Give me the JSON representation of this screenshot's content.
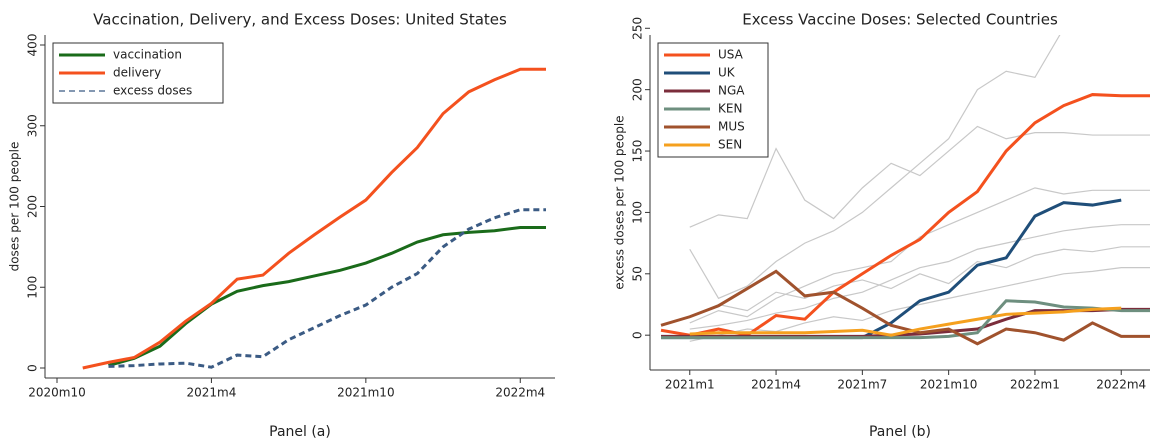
{
  "chart_data": [
    {
      "type": "line",
      "title": "Vaccination, Delivery, and Excess Doses: United States",
      "ylabel": "doses per 100 people",
      "caption": "Panel (a)",
      "x": [
        "2020m11",
        "2020m12",
        "2021m1",
        "2021m2",
        "2021m3",
        "2021m4",
        "2021m5",
        "2021m6",
        "2021m7",
        "2021m8",
        "2021m9",
        "2021m10",
        "2021m11",
        "2021m12",
        "2022m1",
        "2022m2",
        "2022m3",
        "2022m4",
        "2022m5"
      ],
      "xlim": [
        "2020m10",
        "2022m5"
      ],
      "xticks": [
        "2020m10",
        "2021m4",
        "2021m10",
        "2022m4"
      ],
      "ylim": [
        0,
        400
      ],
      "yticks": [
        0,
        100,
        200,
        300,
        400
      ],
      "legend": "upper left",
      "series": [
        {
          "name": "vaccination",
          "color": "#1a6b1a",
          "values": [
            null,
            3,
            12,
            27,
            55,
            79,
            95,
            102,
            107,
            114,
            121,
            130,
            142,
            156,
            165,
            168,
            170,
            174,
            174
          ]
        },
        {
          "name": "delivery",
          "color": "#f4511e",
          "values": [
            0,
            7,
            13,
            32,
            58,
            80,
            110,
            115,
            142,
            165,
            187,
            208,
            242,
            273,
            315,
            342,
            357,
            370,
            370
          ]
        },
        {
          "name": "excess doses",
          "color": "#3b5b84",
          "dash": true,
          "values": [
            null,
            2,
            3,
            5,
            6,
            1,
            16,
            14,
            35,
            50,
            65,
            78,
            100,
            117,
            150,
            172,
            186,
            196,
            196
          ]
        }
      ]
    },
    {
      "type": "line",
      "title": "Excess Vaccine Doses: Selected Countries",
      "ylabel": "excess doses per 100 people",
      "caption": "Panel (b)",
      "x": [
        "2020m12",
        "2021m1",
        "2021m2",
        "2021m3",
        "2021m4",
        "2021m5",
        "2021m6",
        "2021m7",
        "2021m8",
        "2021m9",
        "2021m10",
        "2021m11",
        "2021m12",
        "2022m1",
        "2022m2",
        "2022m3",
        "2022m4",
        "2022m5"
      ],
      "xlim": [
        "2020m12",
        "2022m5"
      ],
      "xticks": [
        "2021m1",
        "2021m4",
        "2021m7",
        "2021m10",
        "2022m1",
        "2022m4"
      ],
      "ylim": [
        -8,
        260
      ],
      "yticks": [
        0,
        50,
        100,
        150,
        200,
        250
      ],
      "legend": "upper left",
      "series": [
        {
          "color": "#c8c8c8",
          "values": [
            null,
            70,
            30,
            40,
            60,
            75,
            85,
            100,
            120,
            140,
            160,
            200,
            215,
            210,
            250,
            245,
            245,
            245
          ]
        },
        {
          "color": "#c8c8c8",
          "values": [
            null,
            88,
            98,
            95,
            152,
            110,
            95,
            120,
            140,
            130,
            150,
            170,
            160,
            165,
            165,
            163,
            163,
            163
          ]
        },
        {
          "color": "#c8c8c8",
          "values": [
            null,
            10,
            20,
            15,
            30,
            40,
            50,
            55,
            60,
            80,
            90,
            100,
            110,
            120,
            115,
            118,
            118,
            118
          ]
        },
        {
          "color": "#c8c8c8",
          "values": [
            null,
            5,
            8,
            12,
            18,
            22,
            30,
            35,
            45,
            55,
            60,
            70,
            75,
            80,
            85,
            88,
            90,
            90
          ]
        },
        {
          "color": "#c8c8c8",
          "values": [
            null,
            -5,
            0,
            5,
            3,
            10,
            15,
            12,
            20,
            25,
            30,
            35,
            40,
            45,
            50,
            52,
            55,
            55
          ]
        },
        {
          "color": "#c8c8c8",
          "values": [
            null,
            15,
            25,
            20,
            35,
            30,
            40,
            45,
            38,
            50,
            42,
            60,
            55,
            65,
            70,
            68,
            72,
            72
          ]
        },
        {
          "name": "USA",
          "color": "#f4511e",
          "values": [
            4,
            0,
            5,
            0,
            16,
            13,
            35,
            50,
            65,
            78,
            100,
            117,
            150,
            173,
            187,
            196,
            195,
            195
          ]
        },
        {
          "name": "UK",
          "color": "#1f4e79",
          "values": [
            -2,
            -2,
            -2,
            -2,
            -2,
            -2,
            -2,
            -2,
            10,
            28,
            35,
            57,
            63,
            97,
            108,
            106,
            110,
            null
          ]
        },
        {
          "name": "NGA",
          "color": "#7b2d3b",
          "values": [
            -1,
            -1,
            -1,
            -1,
            -1,
            -1,
            -1,
            -1,
            0,
            1,
            3,
            5,
            13,
            20,
            20,
            20,
            21,
            21
          ]
        },
        {
          "name": "KEN",
          "color": "#6e8f7f",
          "values": [
            -2,
            -2,
            -2,
            -2,
            -2,
            -2,
            -2,
            -2,
            -2,
            -2,
            -1,
            2,
            28,
            27,
            23,
            22,
            20,
            20
          ]
        },
        {
          "name": "MUS",
          "color": "#a0522d",
          "values": [
            8,
            15,
            24,
            38,
            52,
            32,
            35,
            22,
            8,
            2,
            5,
            -7,
            5,
            2,
            -4,
            10,
            -1,
            -1
          ]
        },
        {
          "name": "SEN",
          "color": "#f5a01e",
          "values": [
            null,
            1,
            2,
            2,
            2,
            2,
            3,
            4,
            0,
            5,
            9,
            13,
            17,
            18,
            19,
            21,
            22,
            null
          ]
        }
      ]
    }
  ]
}
